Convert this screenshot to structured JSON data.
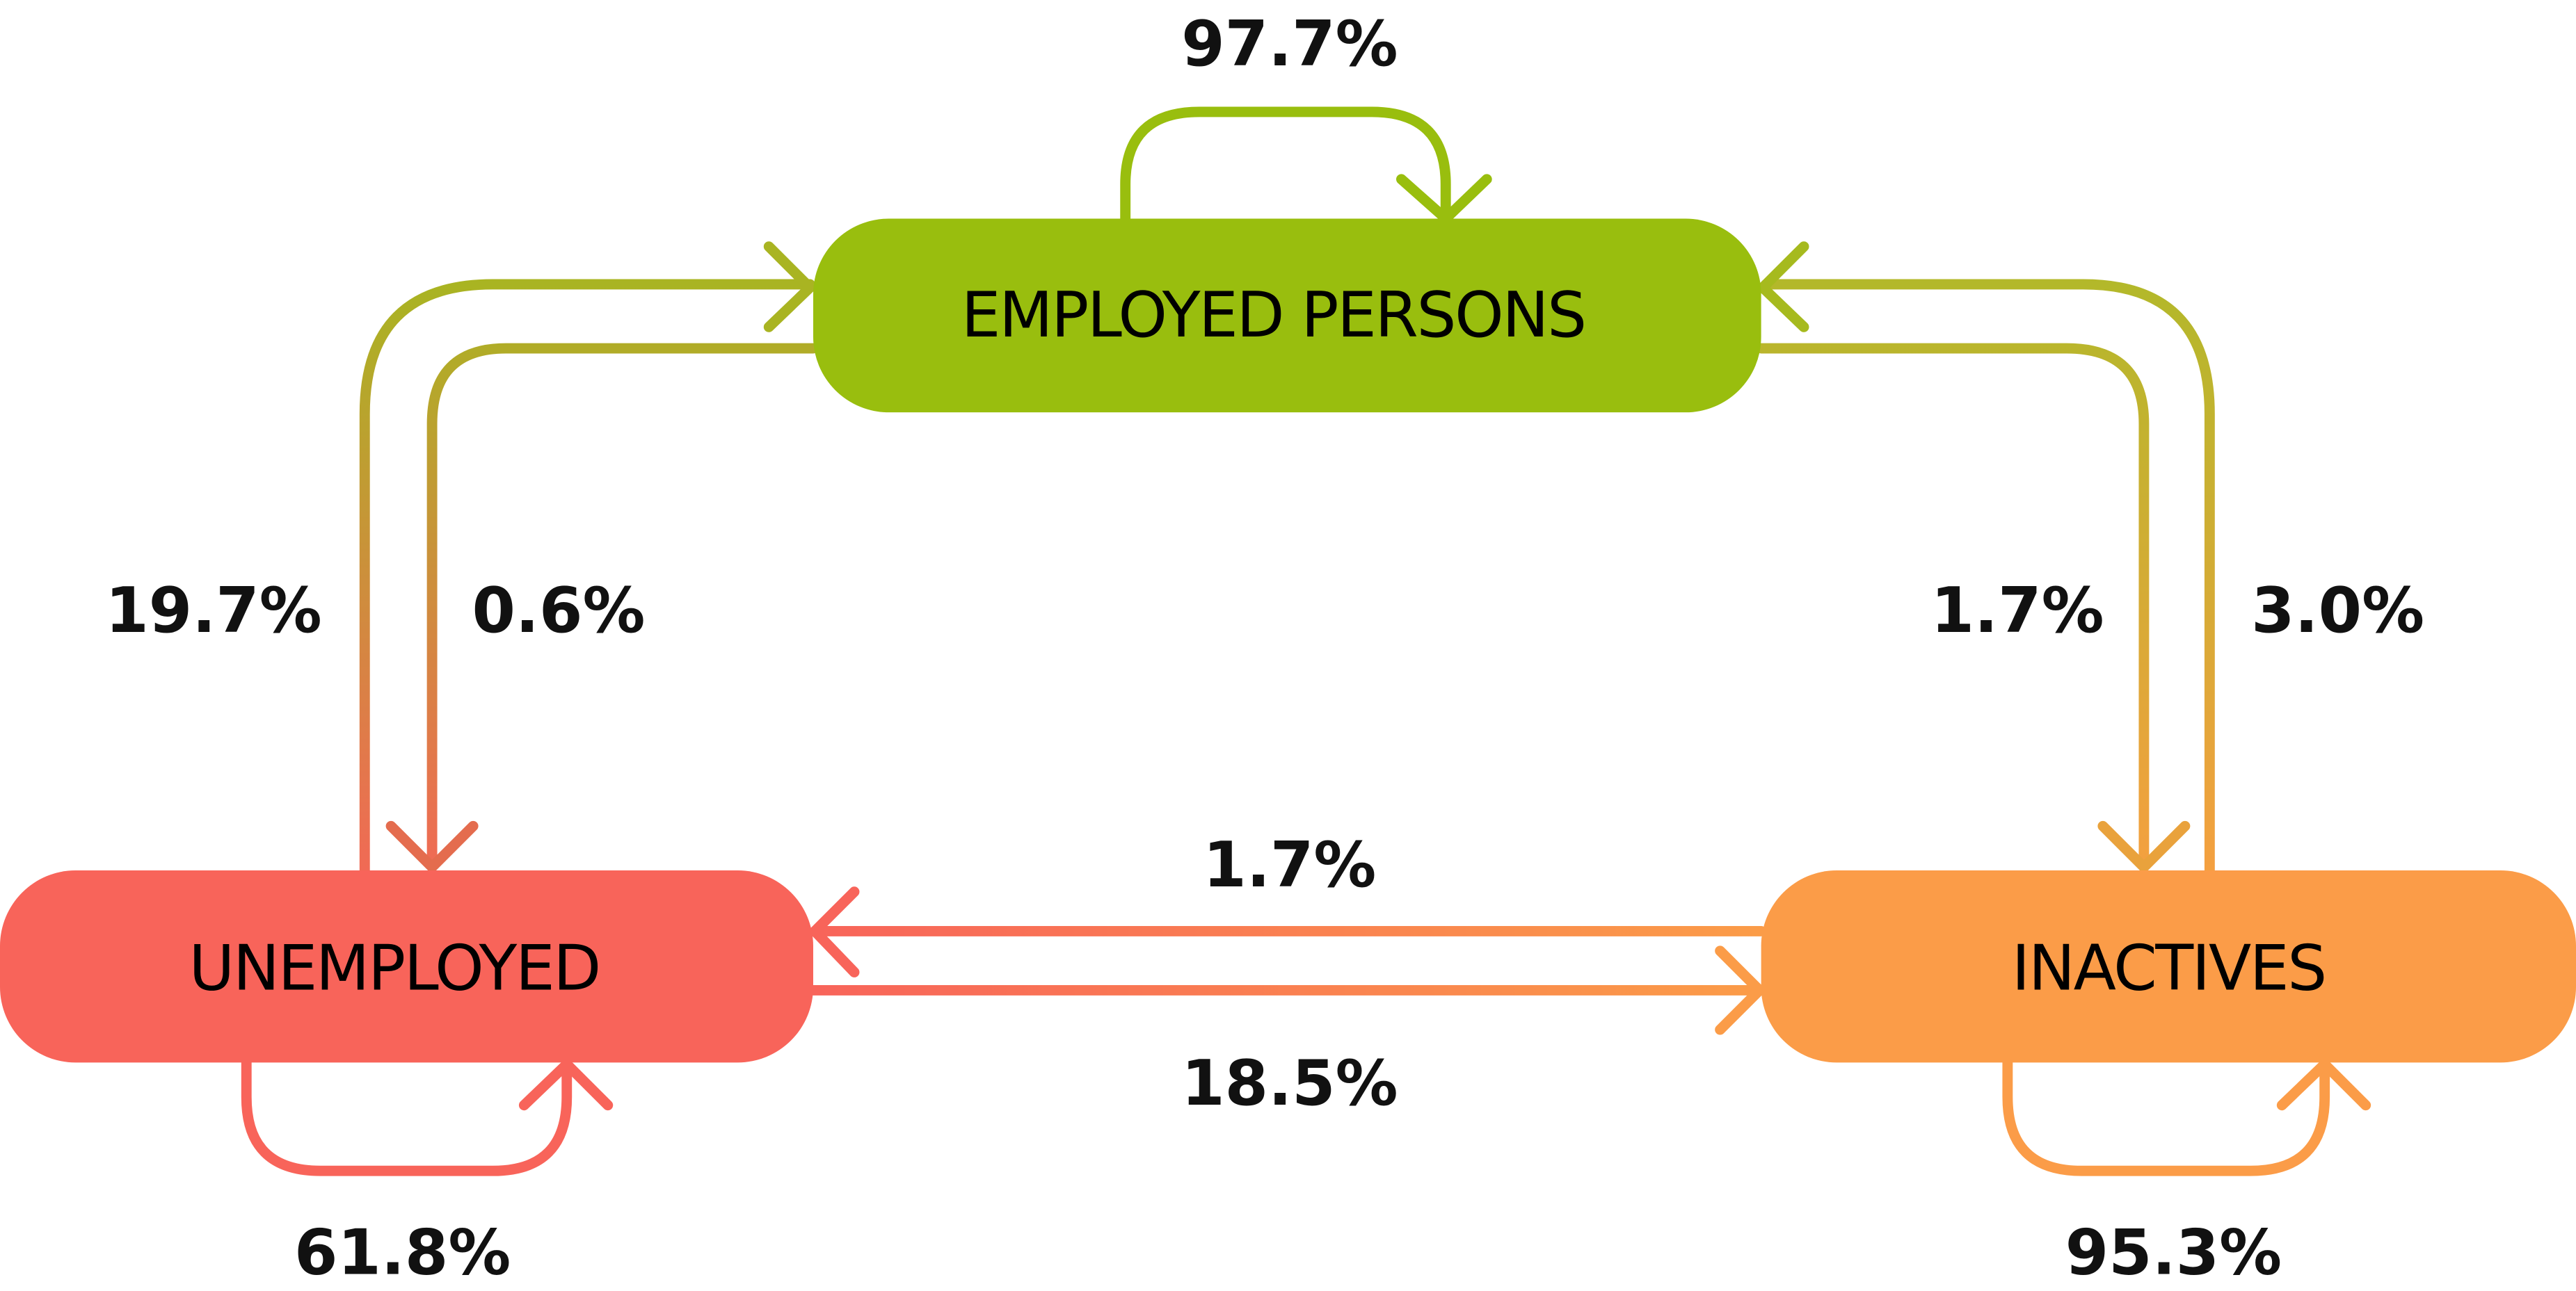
{
  "nodes": {
    "employed": {
      "label": "EMPLOYED PERSONS",
      "color": "#99BE0E"
    },
    "unemployed": {
      "label": "UNEMPLOYED",
      "color": "#F8645A"
    },
    "inactives": {
      "label": "INACTIVES",
      "color": "#FB9C48"
    }
  },
  "flows": {
    "employed_to_employed": "97.7%",
    "unemployed_to_employed": "19.7%",
    "employed_to_unemployed": "0.6%",
    "employed_to_inactives": "1.7%",
    "inactives_to_employed": "3.0%",
    "inactives_to_unemployed": "1.7%",
    "unemployed_to_inactives": "18.5%",
    "unemployed_to_unemployed": "61.8%",
    "inactives_to_inactives": "95.3%"
  }
}
